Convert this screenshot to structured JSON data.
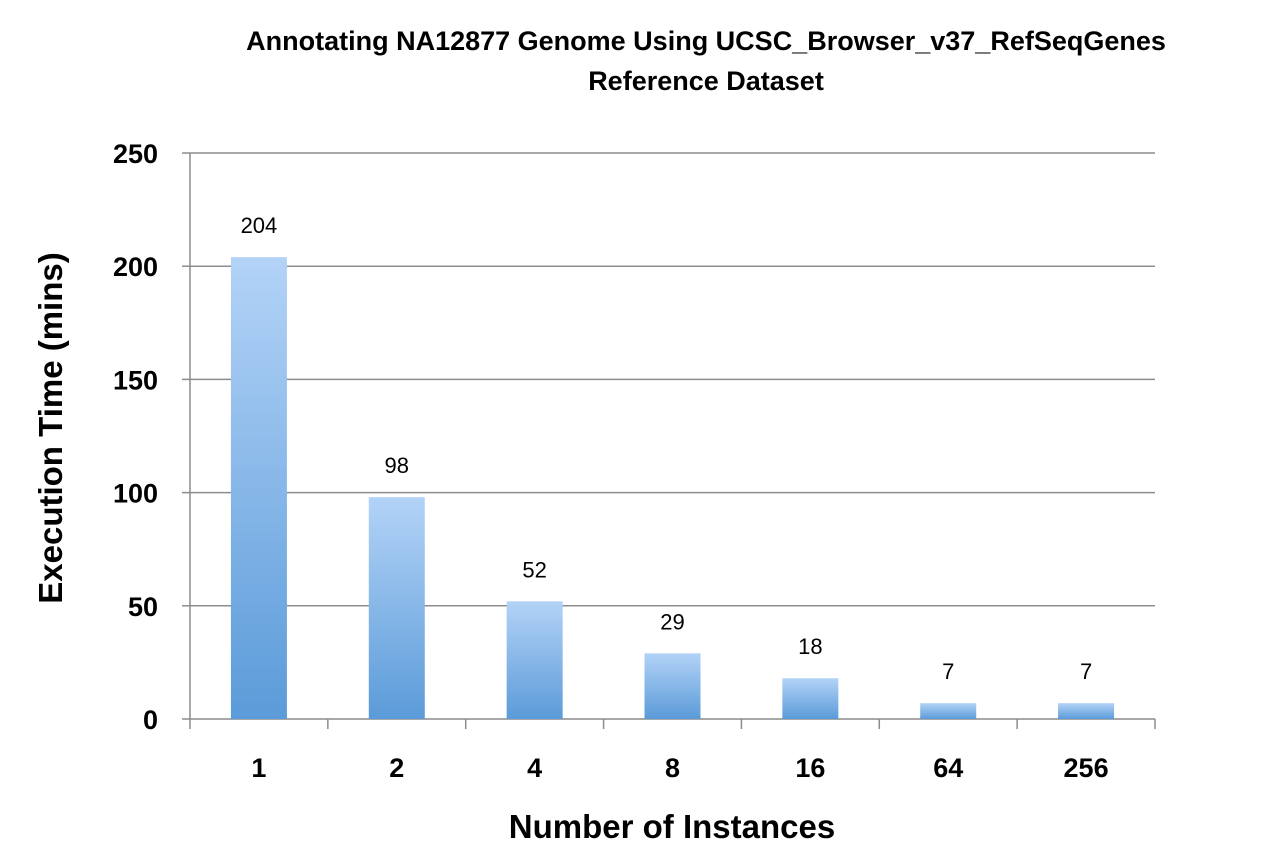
{
  "chart_data": {
    "type": "bar",
    "title": [
      "Annotating NA12877 Genome Using UCSC_Browser_v37_RefSeqGenes",
      "Reference Dataset"
    ],
    "xlabel": "Number of Instances",
    "ylabel": "Execution Time (mins)",
    "categories": [
      "1",
      "2",
      "4",
      "8",
      "16",
      "64",
      "256"
    ],
    "values": [
      204,
      98,
      52,
      29,
      18,
      7,
      7
    ],
    "data_labels": [
      "204",
      "98",
      "52",
      "29",
      "18",
      "7",
      "7"
    ],
    "ylim": [
      0,
      250
    ],
    "yticks": [
      0,
      50,
      100,
      150,
      200,
      250
    ],
    "ytick_labels": [
      "0",
      "50",
      "100",
      "150",
      "200",
      "250"
    ],
    "grid": true,
    "legend": "none",
    "colors": {
      "bar_top": "#b3d3f7",
      "bar_bottom": "#5b9bd9"
    }
  }
}
